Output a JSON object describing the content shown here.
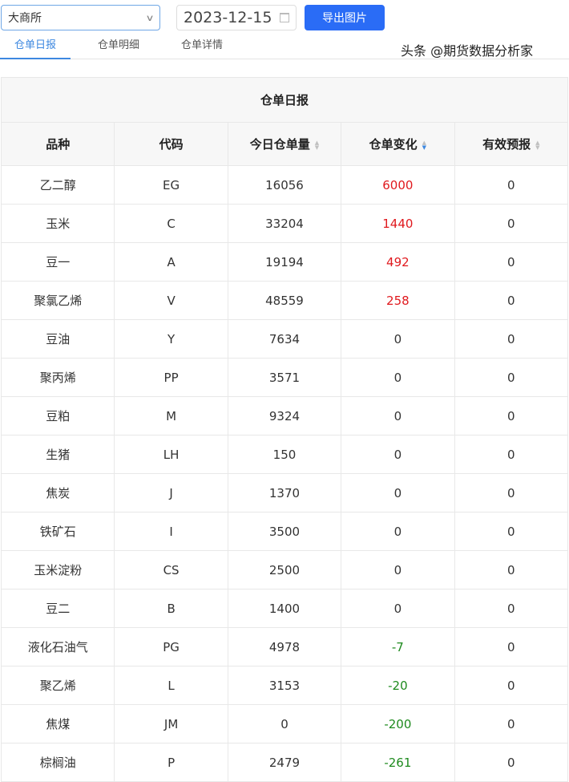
{
  "toolbar": {
    "exchange": "大商所",
    "date": "2023-12-15",
    "export_label": "导出图片"
  },
  "tabs": [
    {
      "label": "仓单日报",
      "active": true
    },
    {
      "label": "仓单明细"
    },
    {
      "label": "仓单详情"
    }
  ],
  "table": {
    "title": "仓单日报",
    "headers": [
      "品种",
      "代码",
      "今日仓单量",
      "仓单变化",
      "有效预报"
    ],
    "sort_active_column": "仓单变化",
    "rows": [
      [
        "乙二醇",
        "EG",
        "16056",
        "6000",
        "0"
      ],
      [
        "玉米",
        "C",
        "33204",
        "1440",
        "0"
      ],
      [
        "豆一",
        "A",
        "19194",
        "492",
        "0"
      ],
      [
        "聚氯乙烯",
        "V",
        "48559",
        "258",
        "0"
      ],
      [
        "豆油",
        "Y",
        "7634",
        "0",
        "0"
      ],
      [
        "聚丙烯",
        "PP",
        "3571",
        "0",
        "0"
      ],
      [
        "豆粕",
        "M",
        "9324",
        "0",
        "0"
      ],
      [
        "生猪",
        "LH",
        "150",
        "0",
        "0"
      ],
      [
        "焦炭",
        "J",
        "1370",
        "0",
        "0"
      ],
      [
        "铁矿石",
        "I",
        "3500",
        "0",
        "0"
      ],
      [
        "玉米淀粉",
        "CS",
        "2500",
        "0",
        "0"
      ],
      [
        "豆二",
        "B",
        "1400",
        "0",
        "0"
      ],
      [
        "液化石油气",
        "PG",
        "4978",
        "-7",
        "0"
      ],
      [
        "聚乙烯",
        "L",
        "3153",
        "-20",
        "0"
      ],
      [
        "焦煤",
        "JM",
        "0",
        "-200",
        "0"
      ],
      [
        "棕榈油",
        "P",
        "2479",
        "-261",
        "0"
      ]
    ]
  },
  "watermark": "头条 @期货数据分析家",
  "colors": {
    "accent": "#2a6cf6",
    "positive": "#e0191e",
    "negative": "#1e8a1e"
  }
}
